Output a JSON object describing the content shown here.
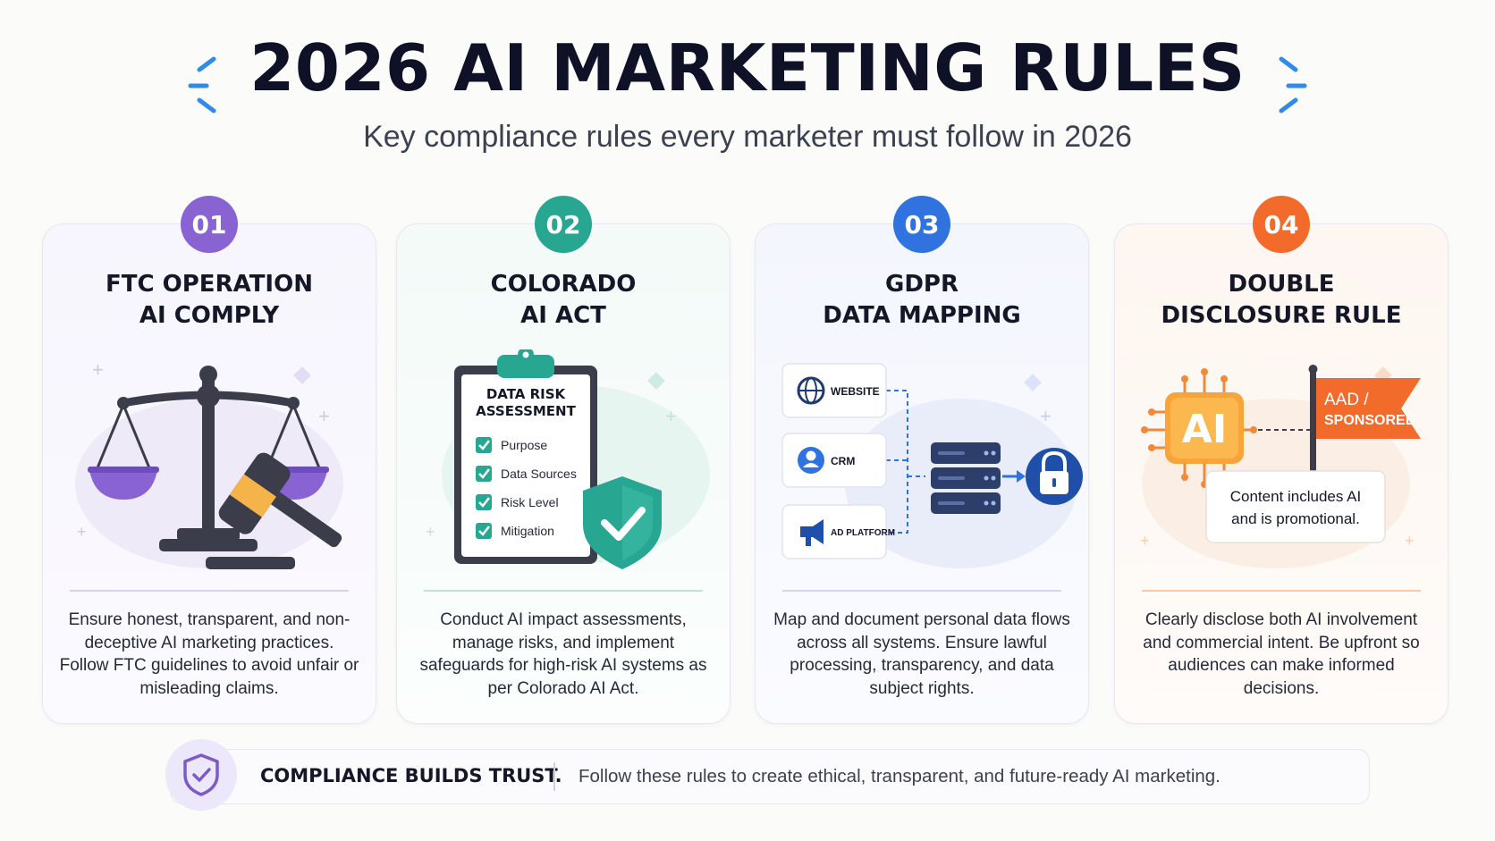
{
  "header": {
    "title": "2026 AI MARKETING RULES",
    "subtitle": "Key compliance rules every marketer must follow in 2026"
  },
  "colors": {
    "purple": "#8a63d2",
    "teal": "#27a792",
    "blue": "#2f72e0",
    "orange": "#f26b2a",
    "navy": "#0f1226"
  },
  "cards": [
    {
      "number": "01",
      "title_line1": "FTC OPERATION",
      "title_line2": "AI COMPLY",
      "icon": "scales-of-justice-gavel-icon",
      "description": "Ensure honest, transparent, and non-deceptive AI marketing practices. Follow FTC guidelines to avoid unfair or misleading claims."
    },
    {
      "number": "02",
      "title_line1": "COLORADO",
      "title_line2": "AI ACT",
      "icon": "clipboard-shield-icon",
      "clipboard": {
        "heading_line1": "DATA RISK",
        "heading_line2": "ASSESSMENT",
        "items": [
          "Purpose",
          "Data Sources",
          "Risk Level",
          "Mitigation"
        ]
      },
      "description": "Conduct AI impact assessments, manage risks, and implement safeguards for high-risk AI systems as per Colorado AI Act."
    },
    {
      "number": "03",
      "title_line1": "GDPR",
      "title_line2": "DATA MAPPING",
      "icon": "data-flow-server-lock-icon",
      "sources": [
        "WEBSITE",
        "CRM",
        "AD PLATFORM"
      ],
      "description": "Map and document personal data flows across all systems. Ensure lawful processing, transparency, and data subject rights."
    },
    {
      "number": "04",
      "title_line1": "DOUBLE",
      "title_line2": "DISCLOSURE RULE",
      "icon": "ai-chip-flag-icon",
      "chip_label": "AI",
      "flag_line1": "AAD /",
      "flag_line2": "SPONSORED",
      "note_line1": "Content includes AI",
      "note_line2": "and is promotional.",
      "description": "Clearly disclose both AI involvement and commercial intent. Be upfront so audiences can make informed decisions."
    }
  ],
  "footer": {
    "strong": "COMPLIANCE BUILDS TRUST.",
    "text": "Follow these rules to create ethical, transparent, and future-ready AI marketing.",
    "icon": "shield-check-icon"
  }
}
